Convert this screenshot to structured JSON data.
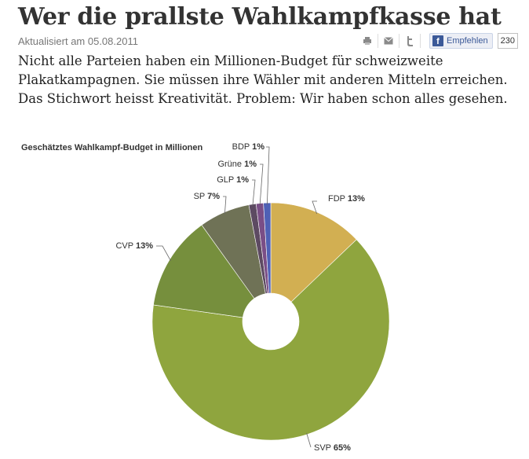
{
  "article": {
    "title": "Wer die prallste Wahlkampfkasse hat",
    "updated": "Aktualisiert am 05.08.2011",
    "intro_lines": [
      "Nicht alle Parteien haben ein Millionen-Budget für schweizweite",
      "Plakatkampagnen. Sie müssen ihre Wähler mit anderen Mitteln erreichen.",
      "Das Stichwort heisst Kreativität. Problem: Wir haben schon alles gesehen."
    ]
  },
  "toolbar": {
    "print_icon": "printer-icon",
    "mail_icon": "mail-icon",
    "twitter_icon": "twitter-icon",
    "facebook_logo": "f",
    "facebook_label": "Empfehlen",
    "facebook_count": "230"
  },
  "chart_data": {
    "type": "pie",
    "donut": true,
    "title": "Geschätztes Wahlkampf-Budget in Millionen",
    "slices": [
      {
        "name": "FDP",
        "value": 13,
        "label": "13%",
        "color": "#d2af52"
      },
      {
        "name": "SVP",
        "value": 65,
        "label": "65%",
        "color": "#8fa53e"
      },
      {
        "name": "CVP",
        "value": 13,
        "label": "13%",
        "color": "#768f3d"
      },
      {
        "name": "SP",
        "value": 7,
        "label": "7%",
        "color": "#6f7256"
      },
      {
        "name": "GLP",
        "value": 1,
        "label": "1%",
        "color": "#5d4a62"
      },
      {
        "name": "Grüne",
        "value": 1,
        "label": "1%",
        "color": "#7a4e86"
      },
      {
        "name": "BDP",
        "value": 1,
        "label": "1%",
        "color": "#4f60b5"
      }
    ]
  }
}
